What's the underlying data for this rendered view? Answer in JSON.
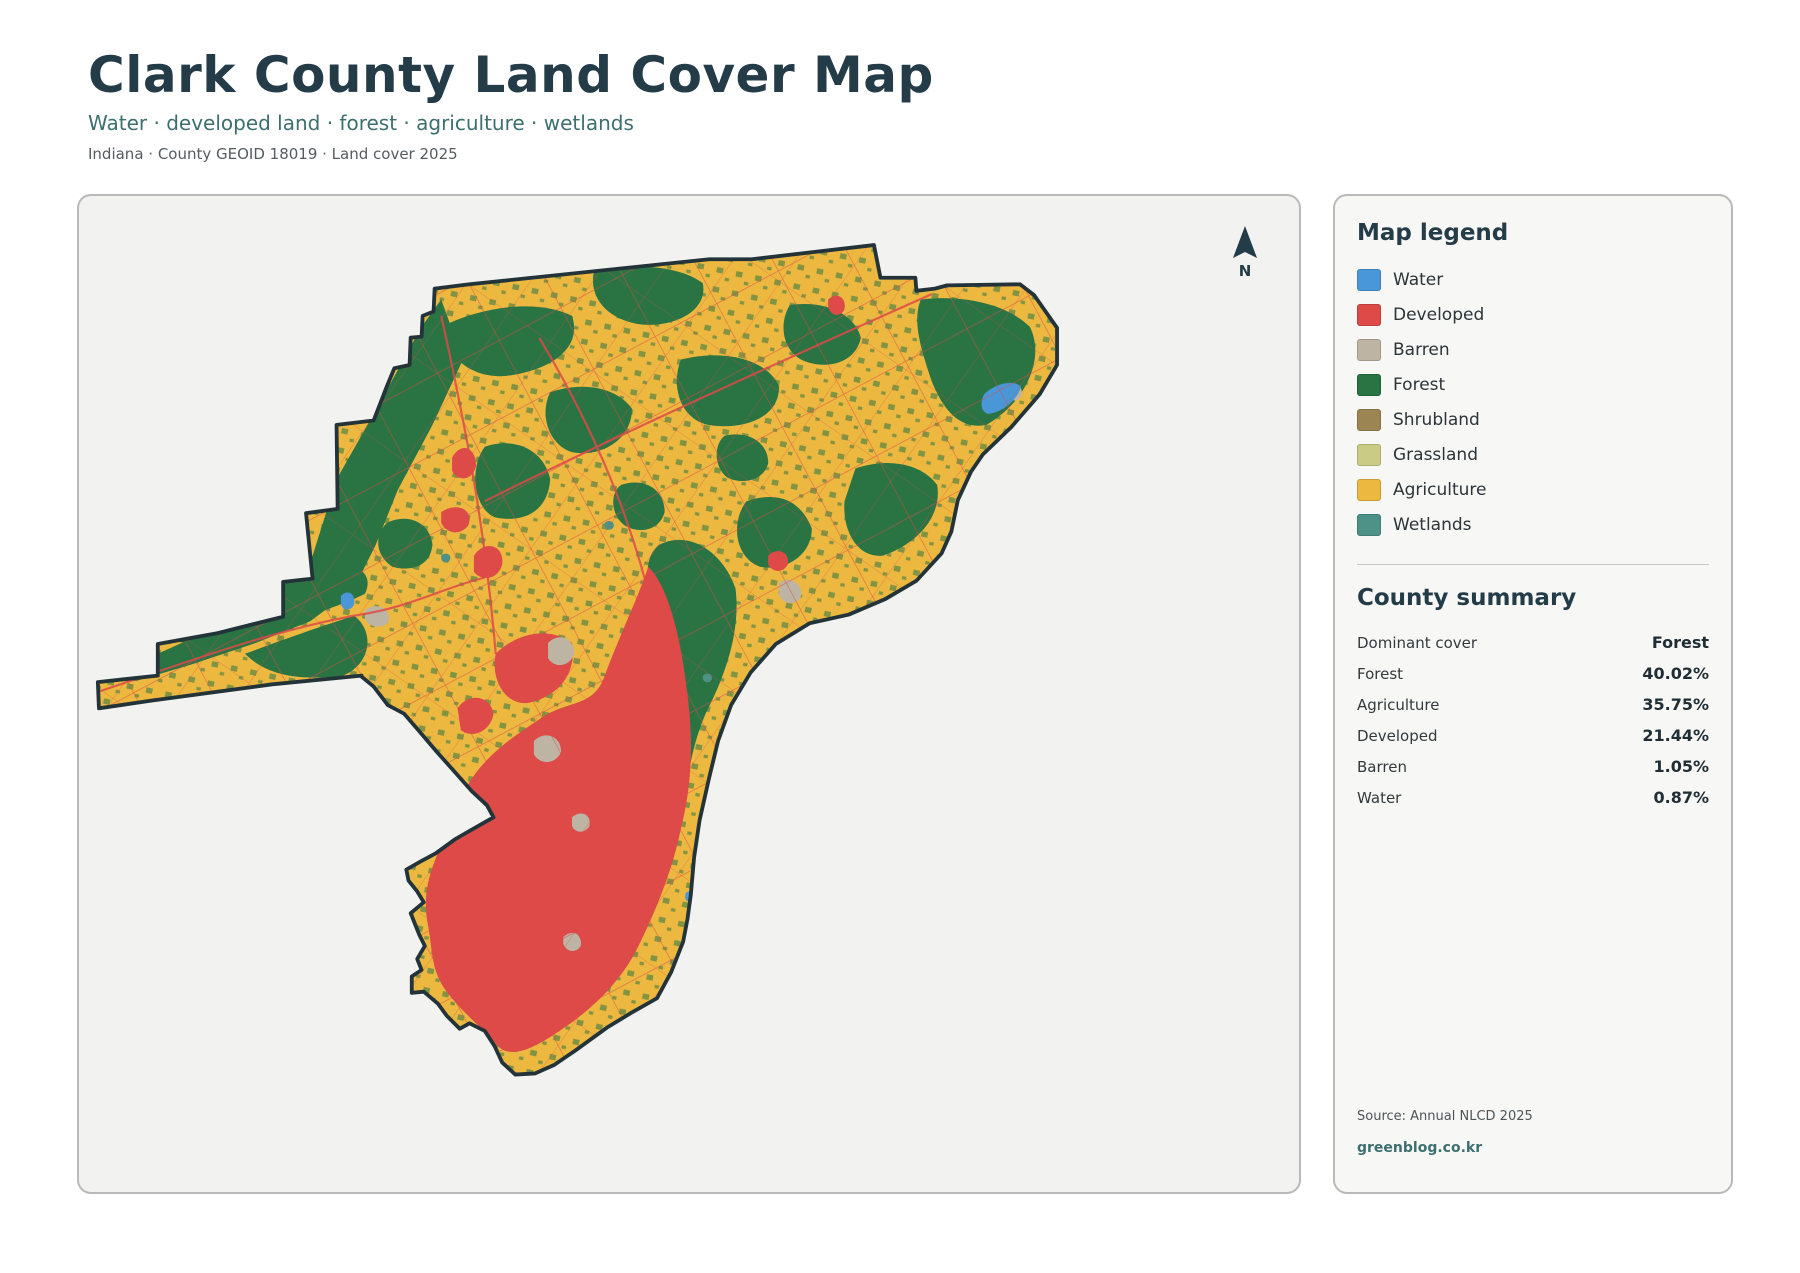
{
  "header": {
    "title": "Clark County Land Cover Map",
    "subtitle": "Water · developed land · forest · agriculture · wetlands",
    "meta": "Indiana · County GEOID 18019 · Land cover 2025"
  },
  "map": {
    "north_label": "N"
  },
  "legend": {
    "heading": "Map legend",
    "items": [
      {
        "label": "Water",
        "color": "#4a97d8"
      },
      {
        "label": "Developed",
        "color": "#dd4a48"
      },
      {
        "label": "Barren",
        "color": "#bdb4a4"
      },
      {
        "label": "Forest",
        "color": "#2a7444"
      },
      {
        "label": "Shrubland",
        "color": "#9b8552"
      },
      {
        "label": "Grassland",
        "color": "#cacc86"
      },
      {
        "label": "Agriculture",
        "color": "#edb840"
      },
      {
        "label": "Wetlands",
        "color": "#4d9187"
      }
    ]
  },
  "summary": {
    "heading": "County summary",
    "rows": [
      {
        "label": "Dominant cover",
        "value": "Forest"
      },
      {
        "label": "Forest",
        "value": "40.02%"
      },
      {
        "label": "Agriculture",
        "value": "35.75%"
      },
      {
        "label": "Developed",
        "value": "21.44%"
      },
      {
        "label": "Barren",
        "value": "1.05%"
      },
      {
        "label": "Water",
        "value": "0.87%"
      }
    ]
  },
  "footer": {
    "source": "Source: Annual NLCD 2025",
    "brand": "greenblog.co.kr"
  }
}
